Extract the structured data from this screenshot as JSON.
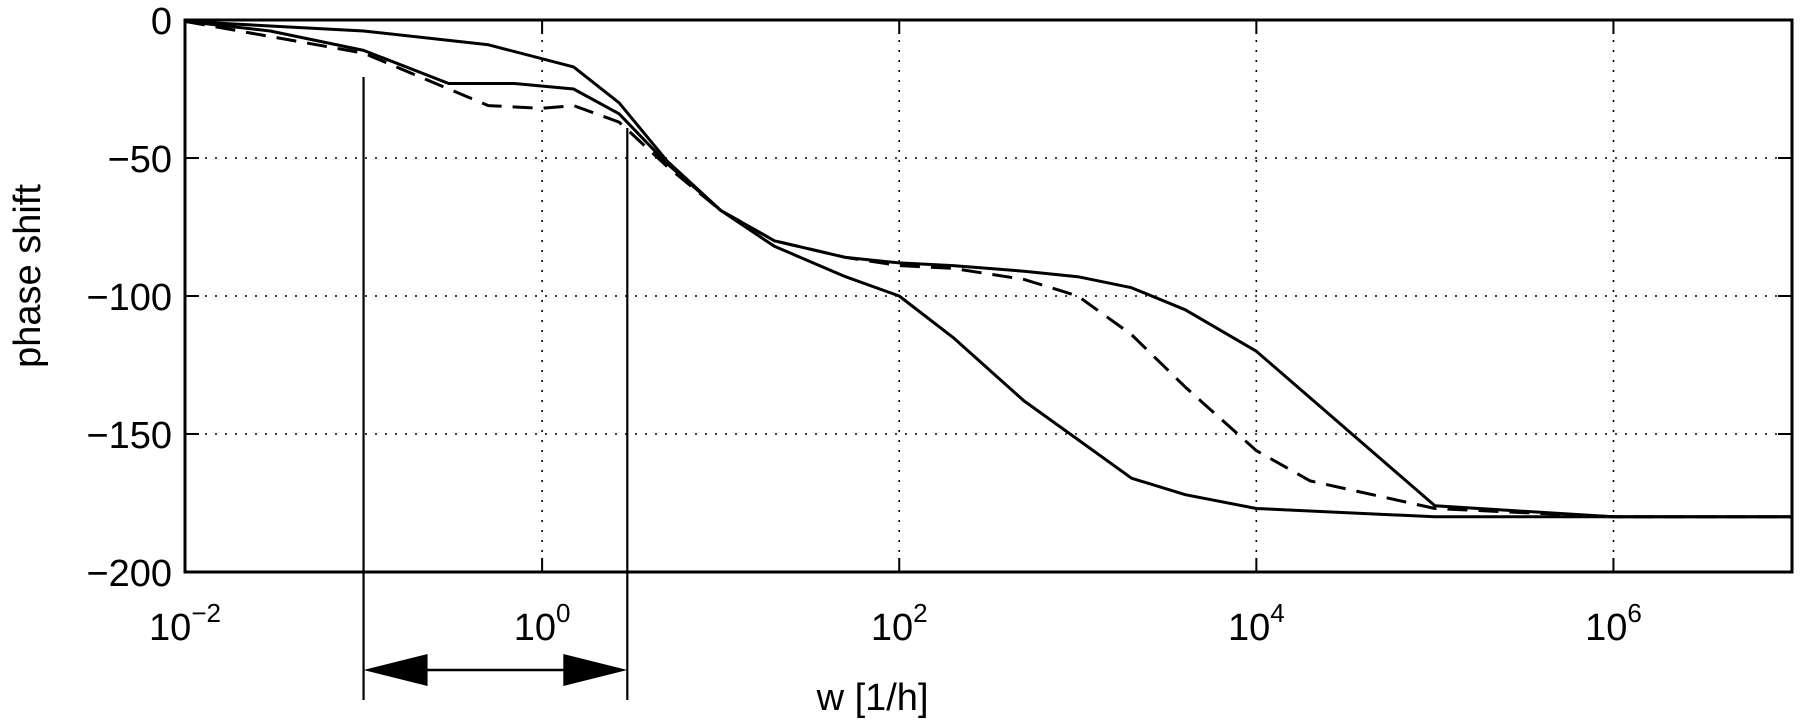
{
  "chart_data": {
    "type": "line",
    "title": "",
    "xlabel": "w [1/h]",
    "ylabel": "phase shift",
    "x_scale": "log",
    "xlim": [
      0.01,
      10000000
    ],
    "ylim": [
      -200,
      0
    ],
    "grid": true,
    "x_ticks": [
      {
        "base": "10",
        "exp": "−2",
        "value": 0.01
      },
      {
        "base": "10",
        "exp": "0",
        "value": 1
      },
      {
        "base": "10",
        "exp": "2",
        "value": 100
      },
      {
        "base": "10",
        "exp": "4",
        "value": 10000
      },
      {
        "base": "10",
        "exp": "6",
        "value": 1000000
      }
    ],
    "y_ticks": [
      {
        "label": "0",
        "value": 0
      },
      {
        "label": "−50",
        "value": -50
      },
      {
        "label": "−100",
        "value": -100
      },
      {
        "label": "−150",
        "value": -150
      },
      {
        "label": "−200",
        "value": -200
      }
    ],
    "series": [
      {
        "style": "solid",
        "x": [
          0.01,
          0.1,
          0.5,
          1.5,
          2.7,
          5,
          10,
          20,
          50,
          100,
          200,
          500,
          1000,
          2000,
          4000,
          10000,
          100000,
          1000000,
          10000000
        ],
        "y": [
          -0.5,
          -4,
          -9,
          -17,
          -30,
          -51,
          -69,
          -80,
          -86,
          -88,
          -89,
          -91,
          -93,
          -97,
          -105,
          -120,
          -176,
          -180,
          -180
        ]
      },
      {
        "style": "solid",
        "x": [
          0.01,
          0.03,
          0.1,
          0.3,
          0.7,
          1.5,
          2.7,
          5,
          10,
          20,
          50,
          100,
          200,
          500,
          1000,
          2000,
          4000,
          10000,
          100000,
          10000000
        ],
        "y": [
          -0.5,
          -4,
          -11,
          -23,
          -23,
          -25,
          -34,
          -52,
          -69,
          -82,
          -93,
          -100,
          -115,
          -138,
          -152,
          -166,
          -172,
          -177,
          -180,
          -180
        ]
      },
      {
        "style": "dashed",
        "x": [
          0.01,
          0.1,
          0.3,
          0.5,
          1,
          1.5,
          2.7,
          5,
          10,
          20,
          50,
          100,
          200,
          500,
          1000,
          2000,
          4000,
          10000,
          20000,
          100000,
          1000000,
          10000000
        ],
        "y": [
          -0.5,
          -12,
          -25,
          -31,
          -32,
          -31,
          -37,
          -53,
          -69,
          -80,
          -86,
          -89,
          -90,
          -94,
          -100,
          -114,
          -133,
          -156,
          -167,
          -177,
          -180,
          -180
        ]
      }
    ],
    "annotation": {
      "markers_x": [
        0.1,
        3
      ],
      "double_arrow_x": [
        0.1,
        3
      ]
    }
  }
}
